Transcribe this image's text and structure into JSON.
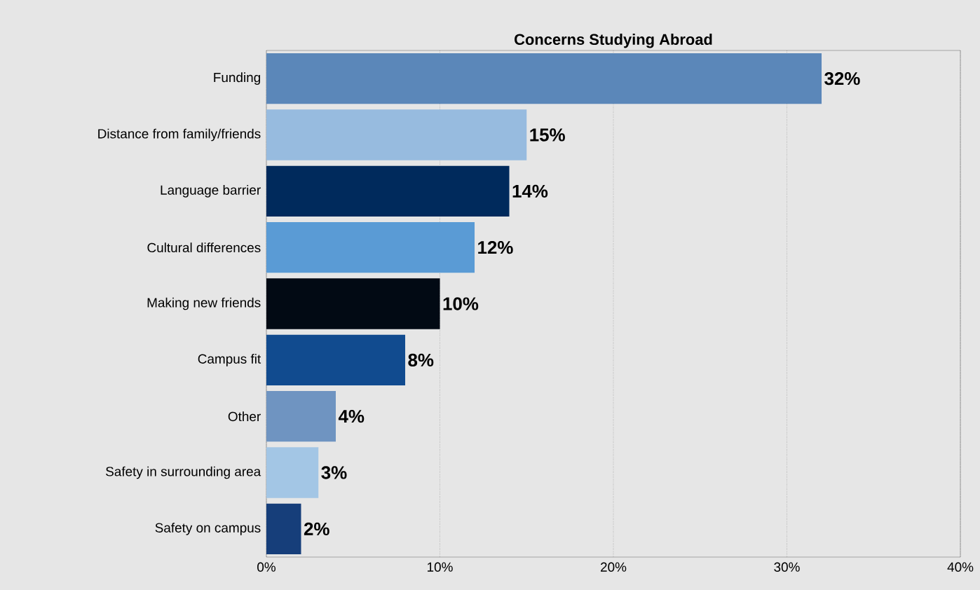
{
  "chart_data": {
    "type": "bar",
    "orientation": "horizontal",
    "title": "Concerns Studying Abroad",
    "categories": [
      "Funding",
      "Distance from family/friends",
      "Language barrier",
      "Cultural differences",
      "Making new friends",
      "Campus fit",
      "Other",
      "Safety in surrounding area",
      "Safety on campus"
    ],
    "values": [
      32,
      15,
      14,
      12,
      10,
      8,
      4,
      3,
      2
    ],
    "value_labels": [
      "32%",
      "15%",
      "14%",
      "12%",
      "10%",
      "8%",
      "4%",
      "3%",
      "2%"
    ],
    "colors": [
      "#5b87b9",
      "#97bbdf",
      "#002a5c",
      "#5a9bd5",
      "#020a14",
      "#114b8f",
      "#6f94c1",
      "#a3c6e5",
      "#163e7a"
    ],
    "xlim": [
      0,
      40
    ],
    "xticks": [
      {
        "value": 0,
        "label": "0%"
      },
      {
        "value": 10,
        "label": "10%"
      },
      {
        "value": 20,
        "label": "20%"
      },
      {
        "value": 30,
        "label": "30%"
      },
      {
        "value": 40,
        "label": "40%"
      }
    ],
    "grid": "x"
  }
}
